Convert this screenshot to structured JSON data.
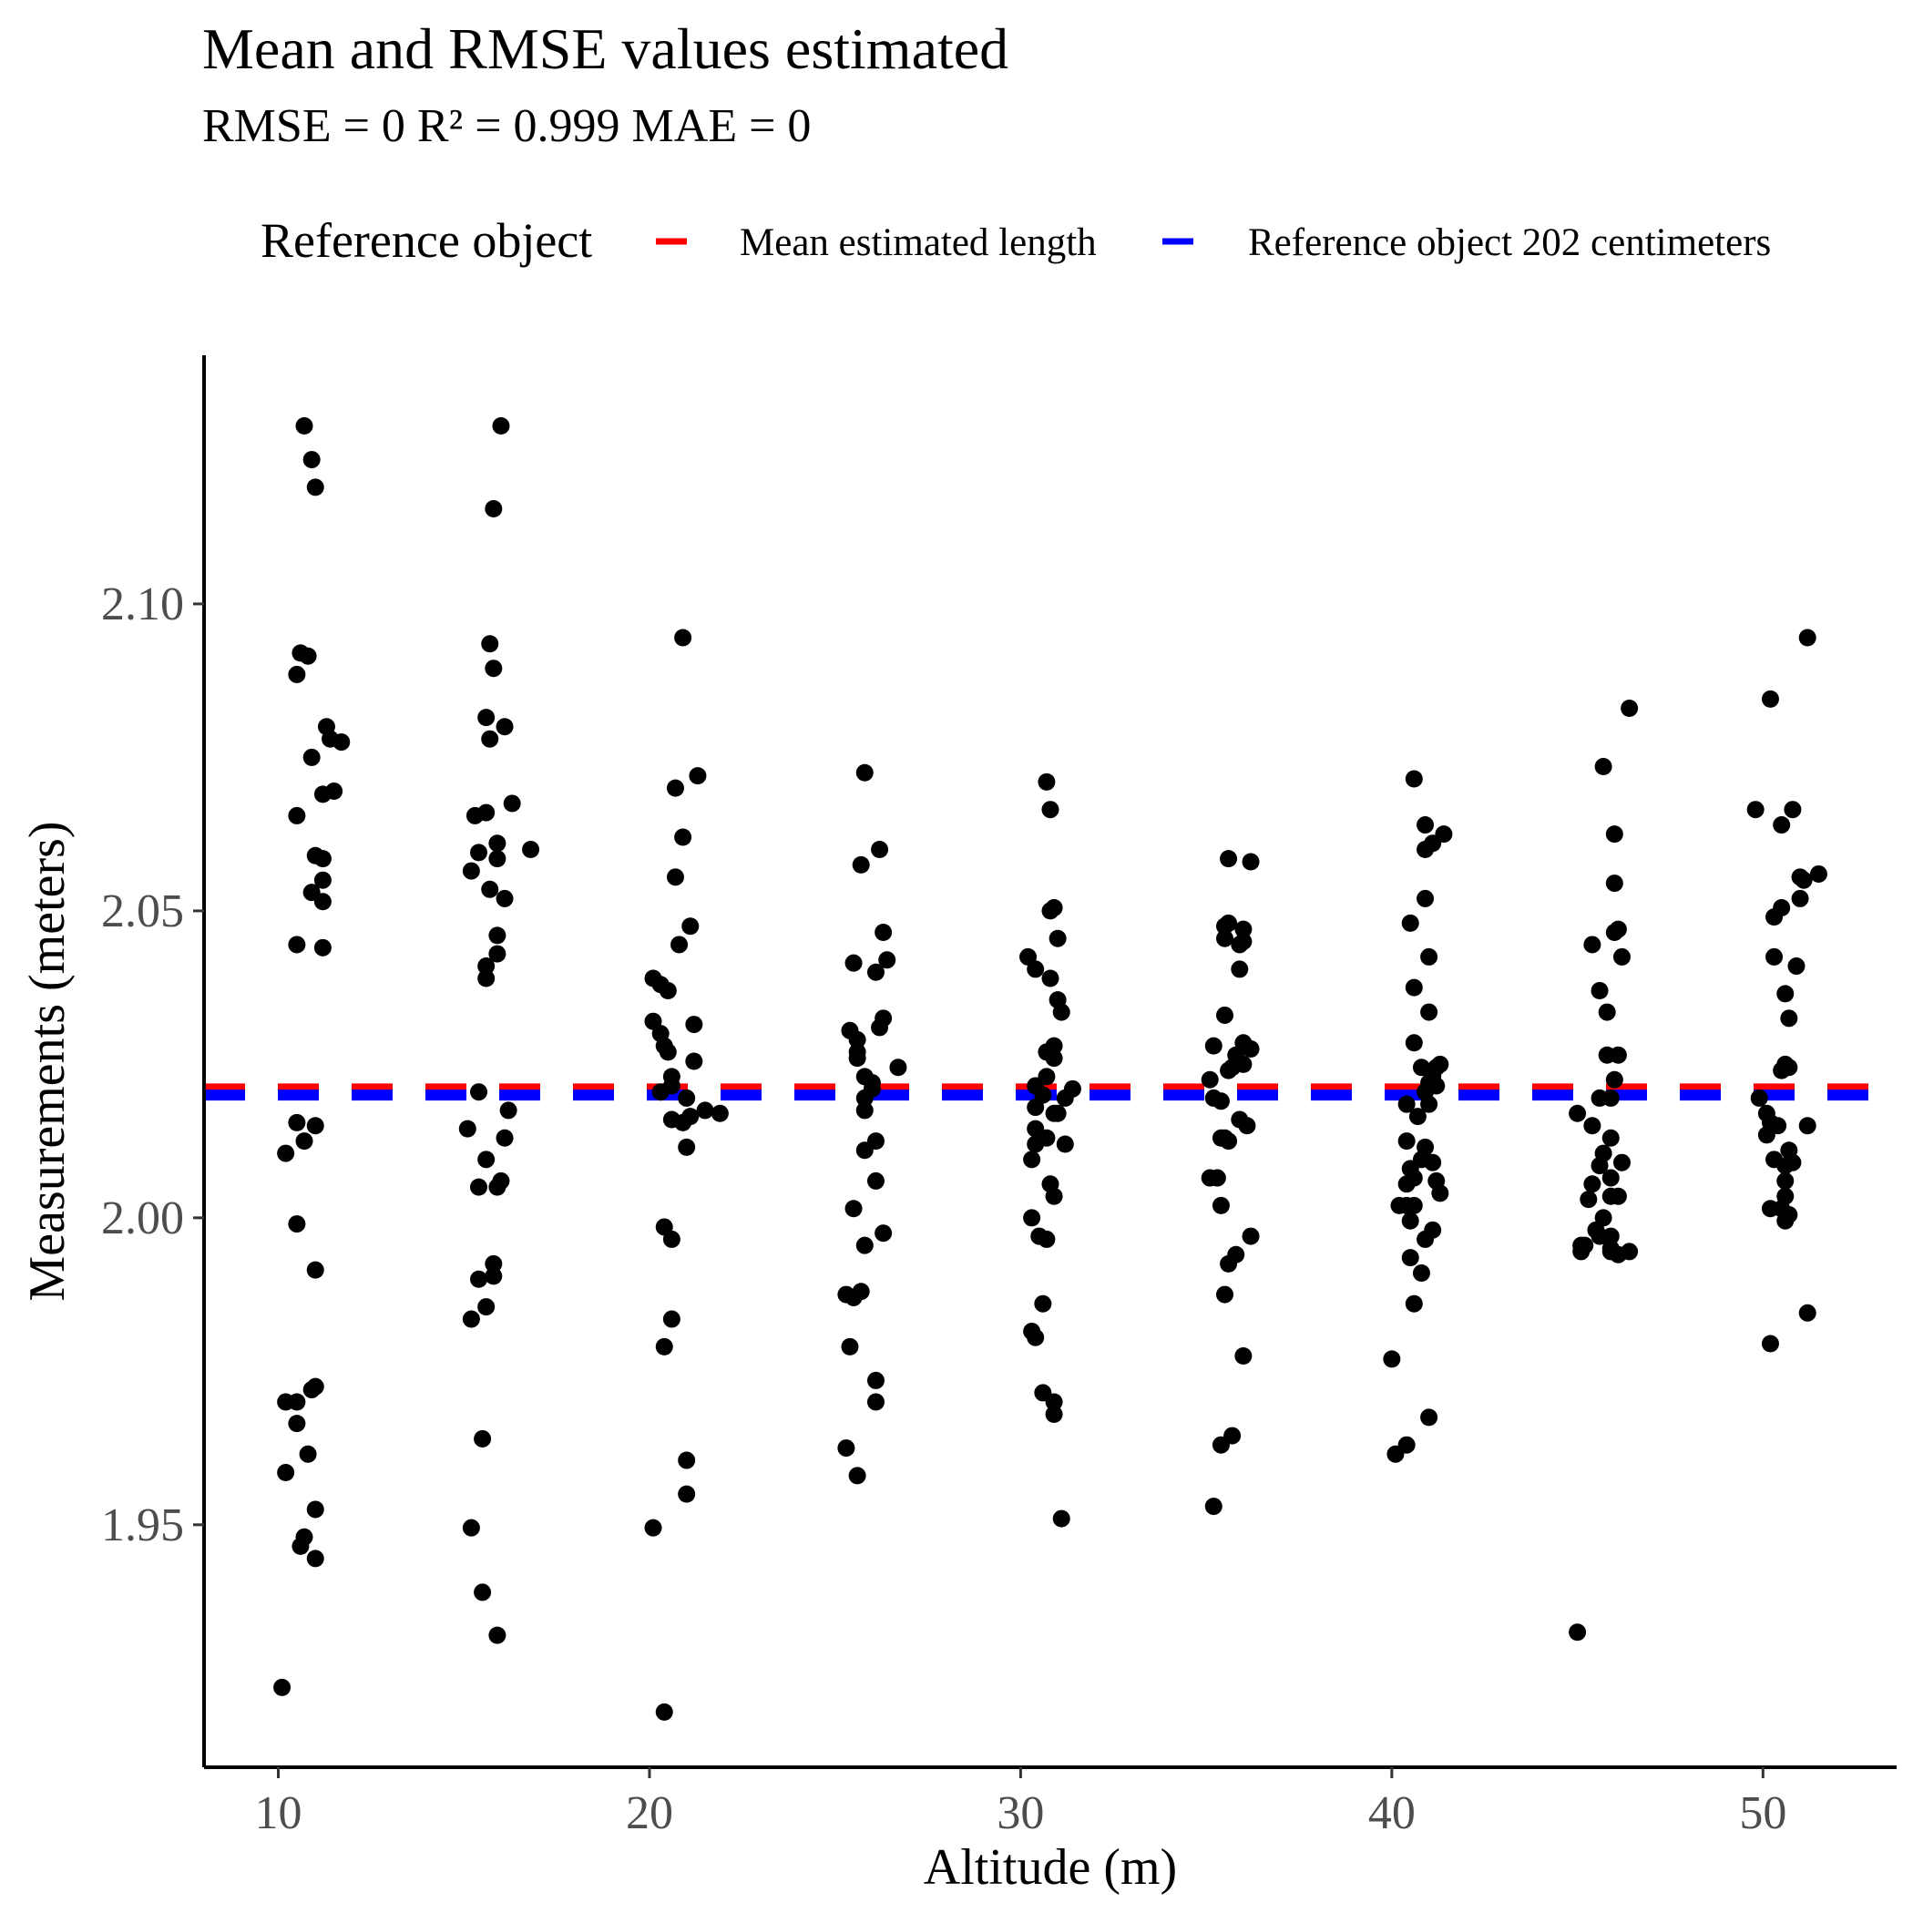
{
  "title": "Mean and RMSE values estimated",
  "subtitle": "RMSE =  0 R² =  0.999 MAE =  0",
  "legend": {
    "title": "Reference object",
    "items": [
      {
        "label": "Mean estimated length",
        "color": "#ff0000"
      },
      {
        "label": "Reference object  202  centimeters",
        "color": "#0000ff"
      }
    ]
  },
  "chart_data": {
    "type": "scatter",
    "xlabel": "Altitude (m)",
    "ylabel": "Measurements (meters)",
    "xlim": [
      8,
      53.6
    ],
    "ylim": [
      1.9105,
      2.1405
    ],
    "xticks": [
      10,
      20,
      30,
      40,
      50
    ],
    "xtick_labels": [
      "10",
      "20",
      "30",
      "40",
      "50"
    ],
    "yticks": [
      1.95,
      2.0,
      2.05,
      2.1
    ],
    "ytick_labels": [
      "1.95",
      "2.00",
      "2.05",
      "2.10"
    ],
    "grid": false,
    "legend_position": "top",
    "hlines": [
      {
        "name": "Mean estimated length",
        "y": 2.021,
        "color": "#ff0000",
        "style": "dashed"
      },
      {
        "name": "Reference object  202  centimeters",
        "y": 2.02,
        "color": "#0000ff",
        "style": "dashed"
      }
    ],
    "points": [
      [
        10.7,
        2.129
      ],
      [
        10.9,
        2.1235
      ],
      [
        11.0,
        2.119
      ],
      [
        10.6,
        2.092
      ],
      [
        10.8,
        2.0915
      ],
      [
        10.5,
        2.0885
      ],
      [
        11.3,
        2.08
      ],
      [
        11.7,
        2.0775
      ],
      [
        11.4,
        2.078
      ],
      [
        10.9,
        2.075
      ],
      [
        11.2,
        2.069
      ],
      [
        11.5,
        2.0695
      ],
      [
        10.5,
        2.0655
      ],
      [
        11.0,
        2.059
      ],
      [
        11.2,
        2.0585
      ],
      [
        11.2,
        2.055
      ],
      [
        10.9,
        2.053
      ],
      [
        11.2,
        2.0515
      ],
      [
        10.5,
        2.0445
      ],
      [
        11.2,
        2.044
      ],
      [
        10.5,
        2.0155
      ],
      [
        11.0,
        2.015
      ],
      [
        10.7,
        2.0125
      ],
      [
        10.2,
        2.0105
      ],
      [
        10.5,
        1.999
      ],
      [
        11.0,
        1.9915
      ],
      [
        10.9,
        1.972
      ],
      [
        11.0,
        1.9725
      ],
      [
        10.2,
        1.97
      ],
      [
        10.5,
        1.97
      ],
      [
        10.5,
        1.9665
      ],
      [
        10.8,
        1.9615
      ],
      [
        10.2,
        1.9585
      ],
      [
        11.0,
        1.9525
      ],
      [
        10.7,
        1.948
      ],
      [
        10.6,
        1.9465
      ],
      [
        11.0,
        1.9445
      ],
      [
        10.1,
        1.9235
      ],
      [
        16.0,
        2.129
      ],
      [
        15.8,
        2.1155
      ],
      [
        15.7,
        2.0935
      ],
      [
        15.8,
        2.0895
      ],
      [
        15.6,
        2.0815
      ],
      [
        16.1,
        2.08
      ],
      [
        15.7,
        2.078
      ],
      [
        16.3,
        2.0675
      ],
      [
        15.3,
        2.0655
      ],
      [
        15.6,
        2.066
      ],
      [
        16.8,
        2.06
      ],
      [
        15.4,
        2.0595
      ],
      [
        15.9,
        2.061
      ],
      [
        15.9,
        2.0585
      ],
      [
        15.2,
        2.0565
      ],
      [
        15.7,
        2.0535
      ],
      [
        16.1,
        2.052
      ],
      [
        15.9,
        2.046
      ],
      [
        15.9,
        2.043
      ],
      [
        15.6,
        2.041
      ],
      [
        15.6,
        2.039
      ],
      [
        15.4,
        2.0205
      ],
      [
        16.2,
        2.0175
      ],
      [
        15.1,
        2.0145
      ],
      [
        16.1,
        2.013
      ],
      [
        15.6,
        2.0095
      ],
      [
        16.0,
        2.006
      ],
      [
        15.4,
        2.005
      ],
      [
        15.9,
        2.005
      ],
      [
        15.8,
        1.9925
      ],
      [
        15.8,
        1.9905
      ],
      [
        15.4,
        1.99
      ],
      [
        15.6,
        1.9855
      ],
      [
        15.2,
        1.9835
      ],
      [
        15.5,
        1.964
      ],
      [
        15.2,
        1.9495
      ],
      [
        15.5,
        1.939
      ],
      [
        15.9,
        1.932
      ],
      [
        20.9,
        2.0945
      ],
      [
        21.3,
        2.072
      ],
      [
        20.7,
        2.07
      ],
      [
        20.9,
        2.062
      ],
      [
        20.7,
        2.0555
      ],
      [
        21.1,
        2.0475
      ],
      [
        20.8,
        2.0445
      ],
      [
        20.1,
        2.039
      ],
      [
        20.3,
        2.038
      ],
      [
        20.5,
        2.037
      ],
      [
        20.1,
        2.032
      ],
      [
        21.2,
        2.0315
      ],
      [
        20.3,
        2.03
      ],
      [
        20.4,
        2.028
      ],
      [
        20.5,
        2.027
      ],
      [
        21.2,
        2.0255
      ],
      [
        20.6,
        2.023
      ],
      [
        20.6,
        2.0215
      ],
      [
        20.3,
        2.0205
      ],
      [
        21.0,
        2.0195
      ],
      [
        21.5,
        2.0175
      ],
      [
        21.9,
        2.017
      ],
      [
        20.6,
        2.016
      ],
      [
        21.1,
        2.0165
      ],
      [
        20.9,
        2.0155
      ],
      [
        21.0,
        2.0115
      ],
      [
        20.4,
        1.9985
      ],
      [
        20.6,
        1.9965
      ],
      [
        20.6,
        1.9835
      ],
      [
        20.4,
        1.979
      ],
      [
        21.0,
        1.9605
      ],
      [
        21.0,
        1.955
      ],
      [
        20.1,
        1.9495
      ],
      [
        20.4,
        1.9195
      ],
      [
        25.8,
        2.0725
      ],
      [
        26.2,
        2.06
      ],
      [
        25.7,
        2.0575
      ],
      [
        26.3,
        2.0465
      ],
      [
        26.4,
        2.042
      ],
      [
        25.5,
        2.0415
      ],
      [
        26.1,
        2.04
      ],
      [
        26.3,
        2.0325
      ],
      [
        26.2,
        2.031
      ],
      [
        25.4,
        2.0305
      ],
      [
        25.6,
        2.029
      ],
      [
        25.6,
        2.027
      ],
      [
        25.6,
        2.026
      ],
      [
        26.7,
        2.0245
      ],
      [
        25.8,
        2.023
      ],
      [
        26.0,
        2.022
      ],
      [
        26.0,
        2.021
      ],
      [
        25.8,
        2.0195
      ],
      [
        25.8,
        2.0175
      ],
      [
        26.1,
        2.0125
      ],
      [
        25.8,
        2.011
      ],
      [
        26.1,
        2.006
      ],
      [
        25.5,
        2.0015
      ],
      [
        25.8,
        1.9955
      ],
      [
        26.3,
        1.9975
      ],
      [
        25.3,
        1.9875
      ],
      [
        25.5,
        1.987
      ],
      [
        25.7,
        1.988
      ],
      [
        25.4,
        1.979
      ],
      [
        26.1,
        1.9735
      ],
      [
        26.1,
        1.97
      ],
      [
        25.3,
        1.9625
      ],
      [
        25.6,
        1.958
      ],
      [
        30.7,
        2.071
      ],
      [
        30.8,
        2.0665
      ],
      [
        30.9,
        2.0505
      ],
      [
        30.8,
        2.05
      ],
      [
        31.0,
        2.0455
      ],
      [
        30.2,
        2.0425
      ],
      [
        30.4,
        2.0405
      ],
      [
        30.8,
        2.039
      ],
      [
        31.0,
        2.0355
      ],
      [
        31.1,
        2.0335
      ],
      [
        30.9,
        2.028
      ],
      [
        30.7,
        2.027
      ],
      [
        30.9,
        2.026
      ],
      [
        30.7,
        2.023
      ],
      [
        30.4,
        2.0215
      ],
      [
        31.4,
        2.021
      ],
      [
        30.6,
        2.02
      ],
      [
        31.2,
        2.0195
      ],
      [
        30.4,
        2.018
      ],
      [
        30.9,
        2.017
      ],
      [
        31.0,
        2.017
      ],
      [
        30.4,
        2.0145
      ],
      [
        30.7,
        2.013
      ],
      [
        30.4,
        2.012
      ],
      [
        31.2,
        2.012
      ],
      [
        30.3,
        2.0095
      ],
      [
        30.8,
        2.0055
      ],
      [
        30.9,
        2.0035
      ],
      [
        30.3,
        2.0
      ],
      [
        30.5,
        1.997
      ],
      [
        30.7,
        1.9965
      ],
      [
        30.6,
        1.986
      ],
      [
        30.3,
        1.9815
      ],
      [
        30.4,
        1.9805
      ],
      [
        30.6,
        1.9715
      ],
      [
        30.9,
        1.97
      ],
      [
        30.9,
        1.968
      ],
      [
        31.1,
        1.951
      ],
      [
        35.6,
        2.0585
      ],
      [
        36.2,
        2.058
      ],
      [
        35.6,
        2.048
      ],
      [
        35.5,
        2.0475
      ],
      [
        36.0,
        2.047
      ],
      [
        36.0,
        2.045
      ],
      [
        35.5,
        2.0455
      ],
      [
        35.9,
        2.0445
      ],
      [
        35.9,
        2.0405
      ],
      [
        35.5,
        2.033
      ],
      [
        36.0,
        2.0285
      ],
      [
        35.2,
        2.028
      ],
      [
        36.2,
        2.0275
      ],
      [
        35.8,
        2.0265
      ],
      [
        36.0,
        2.025
      ],
      [
        35.7,
        2.0245
      ],
      [
        35.6,
        2.024
      ],
      [
        35.1,
        2.0225
      ],
      [
        35.4,
        2.019
      ],
      [
        35.2,
        2.0195
      ],
      [
        35.9,
        2.016
      ],
      [
        36.1,
        2.015
      ],
      [
        35.4,
        2.013
      ],
      [
        35.5,
        2.013
      ],
      [
        35.6,
        2.0125
      ],
      [
        35.3,
        2.0065
      ],
      [
        35.1,
        2.0065
      ],
      [
        35.4,
        2.002
      ],
      [
        36.2,
        1.997
      ],
      [
        35.8,
        1.994
      ],
      [
        35.6,
        1.9925
      ],
      [
        35.5,
        1.9875
      ],
      [
        36.0,
        1.9775
      ],
      [
        35.7,
        1.9645
      ],
      [
        35.4,
        1.963
      ],
      [
        35.2,
        1.953
      ],
      [
        40.6,
        2.0715
      ],
      [
        40.9,
        2.064
      ],
      [
        41.4,
        2.0625
      ],
      [
        41.1,
        2.061
      ],
      [
        40.9,
        2.06
      ],
      [
        40.9,
        2.052
      ],
      [
        40.5,
        2.048
      ],
      [
        41.0,
        2.0425
      ],
      [
        40.6,
        2.0375
      ],
      [
        41.0,
        2.0335
      ],
      [
        40.6,
        2.0285
      ],
      [
        41.2,
        2.0245
      ],
      [
        40.8,
        2.0245
      ],
      [
        41.3,
        2.025
      ],
      [
        41.1,
        2.023
      ],
      [
        41.0,
        2.022
      ],
      [
        41.2,
        2.0215
      ],
      [
        40.9,
        2.0205
      ],
      [
        40.4,
        2.0185
      ],
      [
        41.0,
        2.0185
      ],
      [
        40.7,
        2.0165
      ],
      [
        40.9,
        2.0115
      ],
      [
        40.4,
        2.0125
      ],
      [
        41.1,
        2.009
      ],
      [
        40.8,
        2.0095
      ],
      [
        40.5,
        2.008
      ],
      [
        40.6,
        2.0065
      ],
      [
        41.2,
        2.006
      ],
      [
        40.4,
        2.0055
      ],
      [
        41.3,
        2.004
      ],
      [
        40.4,
        2.002
      ],
      [
        40.2,
        2.002
      ],
      [
        40.6,
        2.002
      ],
      [
        40.5,
        1.9995
      ],
      [
        41.1,
        1.998
      ],
      [
        40.9,
        1.9965
      ],
      [
        40.5,
        1.9935
      ],
      [
        40.8,
        1.991
      ],
      [
        40.6,
        1.986
      ],
      [
        40.0,
        1.977
      ],
      [
        41.0,
        1.9675
      ],
      [
        40.4,
        1.963
      ],
      [
        40.1,
        1.9615
      ],
      [
        46.4,
        2.083
      ],
      [
        45.7,
        2.0735
      ],
      [
        46.0,
        2.0625
      ],
      [
        46.0,
        2.0545
      ],
      [
        46.1,
        2.047
      ],
      [
        46.0,
        2.0465
      ],
      [
        46.2,
        2.0425
      ],
      [
        45.4,
        2.0445
      ],
      [
        45.6,
        2.037
      ],
      [
        45.8,
        2.0335
      ],
      [
        45.8,
        2.0265
      ],
      [
        46.1,
        2.0265
      ],
      [
        46.0,
        2.0225
      ],
      [
        45.9,
        2.0195
      ],
      [
        45.6,
        2.0195
      ],
      [
        45.0,
        2.017
      ],
      [
        45.4,
        2.015
      ],
      [
        45.9,
        2.013
      ],
      [
        45.7,
        2.0105
      ],
      [
        46.2,
        2.009
      ],
      [
        45.6,
        2.0085
      ],
      [
        45.9,
        2.0065
      ],
      [
        45.4,
        2.0055
      ],
      [
        45.9,
        2.0035
      ],
      [
        46.1,
        2.0035
      ],
      [
        45.3,
        2.003
      ],
      [
        45.7,
        2.0
      ],
      [
        45.5,
        1.998
      ],
      [
        45.2,
        1.9955
      ],
      [
        45.6,
        1.997
      ],
      [
        45.9,
        1.997
      ],
      [
        45.1,
        1.9955
      ],
      [
        45.9,
        1.995
      ],
      [
        46.4,
        1.9945
      ],
      [
        46.1,
        1.994
      ],
      [
        45.1,
        1.9945
      ],
      [
        45.9,
        1.9945
      ],
      [
        45.0,
        1.9325
      ],
      [
        51.2,
        2.0945
      ],
      [
        50.2,
        2.0845
      ],
      [
        49.8,
        2.0665
      ],
      [
        50.8,
        2.0665
      ],
      [
        50.5,
        2.064
      ],
      [
        51.0,
        2.0555
      ],
      [
        51.1,
        2.055
      ],
      [
        51.5,
        2.056
      ],
      [
        51.0,
        2.052
      ],
      [
        50.5,
        2.0505
      ],
      [
        50.3,
        2.049
      ],
      [
        50.3,
        2.0425
      ],
      [
        50.9,
        2.041
      ],
      [
        50.6,
        2.0365
      ],
      [
        50.7,
        2.0325
      ],
      [
        50.6,
        2.025
      ],
      [
        50.5,
        2.024
      ],
      [
        50.7,
        2.0245
      ],
      [
        49.9,
        2.0195
      ],
      [
        50.1,
        2.017
      ],
      [
        51.2,
        2.015
      ],
      [
        50.2,
        2.0155
      ],
      [
        50.4,
        2.015
      ],
      [
        50.1,
        2.0135
      ],
      [
        50.7,
        2.011
      ],
      [
        50.3,
        2.0095
      ],
      [
        50.8,
        2.009
      ],
      [
        50.6,
        2.0085
      ],
      [
        50.6,
        2.006
      ],
      [
        50.6,
        2.0035
      ],
      [
        50.5,
        2.0015
      ],
      [
        50.2,
        2.0015
      ],
      [
        50.7,
        2.0005
      ],
      [
        50.6,
        1.9995
      ],
      [
        51.2,
        1.9845
      ],
      [
        50.2,
        1.9795
      ]
    ]
  }
}
